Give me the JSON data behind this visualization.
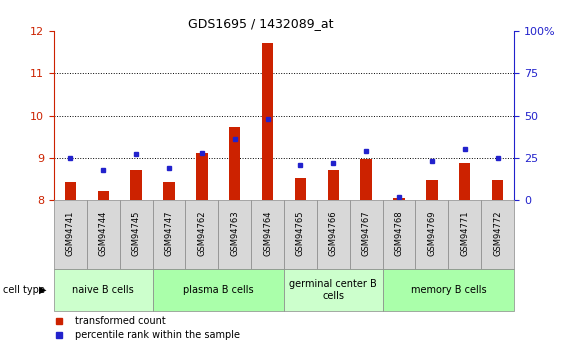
{
  "title": "GDS1695 / 1432089_at",
  "samples": [
    "GSM94741",
    "GSM94744",
    "GSM94745",
    "GSM94747",
    "GSM94762",
    "GSM94763",
    "GSM94764",
    "GSM94765",
    "GSM94766",
    "GSM94767",
    "GSM94768",
    "GSM94769",
    "GSM94771",
    "GSM94772"
  ],
  "transformed_count": [
    8.42,
    8.22,
    8.72,
    8.42,
    9.12,
    9.72,
    11.72,
    8.52,
    8.72,
    8.98,
    8.05,
    8.48,
    8.88,
    8.48
  ],
  "percentile_rank": [
    25,
    18,
    27,
    19,
    28,
    36,
    48,
    21,
    22,
    29,
    2,
    23,
    30,
    25
  ],
  "bar_color": "#cc2200",
  "dot_color": "#2222cc",
  "ylim_left": [
    8.0,
    12.0
  ],
  "ylim_right": [
    0,
    100
  ],
  "yticks_left": [
    8,
    9,
    10,
    11,
    12
  ],
  "yticks_right": [
    0,
    25,
    50,
    75,
    100
  ],
  "baseline": 8.0,
  "grid_lines": [
    9,
    10,
    11
  ],
  "cell_groups": [
    {
      "label": "naive B cells",
      "start": 0,
      "end": 2,
      "color": "#ccffcc"
    },
    {
      "label": "plasma B cells",
      "start": 3,
      "end": 6,
      "color": "#aaffaa"
    },
    {
      "label": "germinal center B\ncells",
      "start": 6,
      "end": 9,
      "color": "#ccffcc"
    },
    {
      "label": "memory B cells",
      "start": 10,
      "end": 13,
      "color": "#aaffaa"
    }
  ],
  "legend_items": [
    {
      "label": "transformed count",
      "color": "#cc2200"
    },
    {
      "label": "percentile rank within the sample",
      "color": "#2222cc"
    }
  ],
  "cell_type_label": "cell type",
  "bar_width": 0.35,
  "sample_box_color": "#d8d8d8",
  "left_axis_color": "#cc2200",
  "right_axis_color": "#2222cc"
}
